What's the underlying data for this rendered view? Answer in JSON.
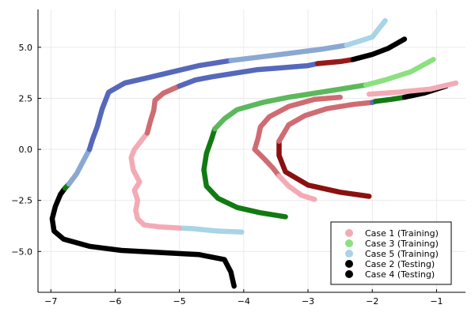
{
  "chart_data": {
    "type": "line",
    "title": "",
    "xlabel": "",
    "ylabel": "",
    "xlim": [
      -7.2,
      -0.55
    ],
    "ylim": [
      -7.0,
      6.85
    ],
    "xticks": [
      -7,
      -6,
      -5,
      -4,
      -3,
      -2,
      -1
    ],
    "xtick_labels": [
      "−7",
      "−6",
      "−5",
      "−4",
      "−3",
      "−2",
      "−1"
    ],
    "yticks": [
      -5.0,
      -2.5,
      0.0,
      2.5,
      5.0
    ],
    "ytick_labels": [
      "−5.0",
      "−2.5",
      "0.0",
      "2.5",
      "5.0"
    ],
    "grid": true,
    "legend_position": "bottom-right",
    "colors": {
      "case1_training": "#f4aab5",
      "case3_training": "#8be07f",
      "case5_training": "#a8d4e6",
      "case2_testing": "#000000",
      "case4_testing": "#000000",
      "case1_dark": "#8b1010",
      "case1_mid": "#d06b72",
      "case2_dark": "#961a1a",
      "case3_dark": "#127a12",
      "case3_mid": "#5cb85c",
      "case5_dark": "#5568bb",
      "case5_mid": "#8aa8d2"
    },
    "legend": [
      {
        "label": "Case 1 (Training)",
        "color": "#f4aab5"
      },
      {
        "label": "Case 3 (Training)",
        "color": "#8be07f"
      },
      {
        "label": "Case 5 (Training)",
        "color": "#a8d4e6"
      },
      {
        "label": "Case 2 (Testing)",
        "color": "#000000"
      },
      {
        "label": "Case 4 (Testing)",
        "color": "#000000"
      }
    ],
    "series": [
      {
        "segments": [
          {
            "color": "#a8d4e6",
            "points": [
              [
                -4.03,
                -4.05
              ],
              [
                -4.4,
                -4.0
              ],
              [
                -4.8,
                -3.88
              ],
              [
                -5.0,
                -3.85
              ]
            ]
          },
          {
            "color": "#f4aab5",
            "points": [
              [
                -5.0,
                -3.85
              ],
              [
                -5.3,
                -3.8
              ],
              [
                -5.55,
                -3.7
              ],
              [
                -5.65,
                -3.4
              ],
              [
                -5.68,
                -3.0
              ],
              [
                -5.65,
                -2.5
              ],
              [
                -5.7,
                -2.0
              ],
              [
                -5.62,
                -1.6
              ],
              [
                -5.72,
                -1.0
              ],
              [
                -5.75,
                -0.4
              ],
              [
                -5.7,
                0.0
              ],
              [
                -5.6,
                0.4
              ],
              [
                -5.5,
                0.8
              ]
            ]
          },
          {
            "color": "#d06b72",
            "points": [
              [
                -5.5,
                0.8
              ],
              [
                -5.45,
                1.4
              ],
              [
                -5.4,
                1.9
              ],
              [
                -5.38,
                2.4
              ],
              [
                -5.25,
                2.75
              ],
              [
                -5.0,
                3.1
              ]
            ]
          },
          {
            "color": "#5568bb",
            "points": [
              [
                -5.0,
                3.1
              ],
              [
                -4.75,
                3.4
              ],
              [
                -4.5,
                3.55
              ],
              [
                -4.2,
                3.7
              ],
              [
                -3.8,
                3.9
              ],
              [
                -3.4,
                4.0
              ],
              [
                -3.0,
                4.1
              ],
              [
                -2.85,
                4.2
              ]
            ]
          },
          {
            "color": "#961a1a",
            "points": [
              [
                -2.85,
                4.2
              ],
              [
                -2.5,
                4.3
              ],
              [
                -2.3,
                4.4
              ]
            ]
          },
          {
            "color": "#000000",
            "points": [
              [
                -2.3,
                4.4
              ],
              [
                -2.0,
                4.65
              ],
              [
                -1.75,
                4.95
              ],
              [
                -1.5,
                5.4
              ]
            ]
          }
        ]
      },
      {
        "segments": [
          {
            "color": "#127a12",
            "points": [
              [
                -3.35,
                -3.3
              ],
              [
                -3.75,
                -3.1
              ],
              [
                -4.1,
                -2.85
              ],
              [
                -4.4,
                -2.4
              ],
              [
                -4.58,
                -1.8
              ],
              [
                -4.62,
                -1.0
              ],
              [
                -4.58,
                -0.2
              ],
              [
                -4.5,
                0.5
              ],
              [
                -4.45,
                1.0
              ]
            ]
          },
          {
            "color": "#5cb85c",
            "points": [
              [
                -4.45,
                1.0
              ],
              [
                -4.3,
                1.5
              ],
              [
                -4.1,
                1.95
              ],
              [
                -3.7,
                2.3
              ],
              [
                -3.3,
                2.55
              ],
              [
                -2.9,
                2.75
              ],
              [
                -2.5,
                2.95
              ],
              [
                -2.1,
                3.15
              ]
            ]
          },
          {
            "color": "#8be07f",
            "points": [
              [
                -2.1,
                3.15
              ],
              [
                -1.8,
                3.4
              ],
              [
                -1.4,
                3.8
              ],
              [
                -1.05,
                4.4
              ]
            ]
          }
        ]
      },
      {
        "segments": [
          {
            "color": "#000000",
            "points": [
              [
                -4.15,
                -6.7
              ],
              [
                -4.2,
                -6.0
              ],
              [
                -4.3,
                -5.4
              ],
              [
                -4.7,
                -5.15
              ],
              [
                -5.3,
                -5.05
              ],
              [
                -5.9,
                -4.95
              ],
              [
                -6.4,
                -4.75
              ],
              [
                -6.8,
                -4.4
              ],
              [
                -6.95,
                -4.0
              ],
              [
                -6.98,
                -3.4
              ],
              [
                -6.93,
                -2.8
              ],
              [
                -6.85,
                -2.2
              ],
              [
                -6.78,
                -1.9
              ]
            ]
          },
          {
            "color": "#127a12",
            "points": [
              [
                -6.78,
                -1.9
              ],
              [
                -6.72,
                -1.7
              ]
            ]
          },
          {
            "color": "#8aa8d2",
            "points": [
              [
                -6.72,
                -1.7
              ],
              [
                -6.6,
                -1.2
              ],
              [
                -6.5,
                -0.6
              ],
              [
                -6.4,
                0.0
              ]
            ]
          },
          {
            "color": "#5568bb",
            "points": [
              [
                -6.4,
                0.0
              ],
              [
                -6.35,
                0.5
              ],
              [
                -6.28,
                1.1
              ],
              [
                -6.2,
                2.0
              ],
              [
                -6.1,
                2.8
              ],
              [
                -5.85,
                3.25
              ],
              [
                -5.5,
                3.5
              ],
              [
                -5.1,
                3.8
              ],
              [
                -4.7,
                4.1
              ],
              [
                -4.2,
                4.35
              ]
            ]
          },
          {
            "color": "#8aa8d2",
            "points": [
              [
                -4.2,
                4.35
              ],
              [
                -3.8,
                4.5
              ],
              [
                -3.3,
                4.7
              ],
              [
                -2.8,
                4.9
              ],
              [
                -2.4,
                5.1
              ]
            ]
          },
          {
            "color": "#a8d4e6",
            "points": [
              [
                -2.4,
                5.1
              ],
              [
                -2.0,
                5.5
              ],
              [
                -1.8,
                6.3
              ]
            ]
          }
        ]
      },
      {
        "segments": [
          {
            "color": "#d06b72",
            "points": [
              [
                -2.5,
                2.55
              ],
              [
                -2.9,
                2.45
              ],
              [
                -3.3,
                2.1
              ],
              [
                -3.6,
                1.6
              ],
              [
                -3.74,
                1.1
              ],
              [
                -3.78,
                0.5
              ],
              [
                -3.83,
                0.0
              ],
              [
                -3.7,
                -0.4
              ],
              [
                -3.55,
                -0.9
              ],
              [
                -3.45,
                -1.3
              ]
            ]
          },
          {
            "color": "#f4aab5",
            "points": [
              [
                -3.45,
                -1.3
              ],
              [
                -3.3,
                -1.8
              ],
              [
                -3.1,
                -2.25
              ],
              [
                -2.9,
                -2.45
              ]
            ]
          }
        ]
      },
      {
        "segments": [
          {
            "color": "#8b1010",
            "points": [
              [
                -2.05,
                -2.3
              ],
              [
                -2.5,
                -2.1
              ],
              [
                -3.0,
                -1.75
              ],
              [
                -3.35,
                -1.1
              ],
              [
                -3.45,
                -0.3
              ],
              [
                -3.45,
                0.4
              ]
            ]
          },
          {
            "color": "#d06b72",
            "points": [
              [
                -3.45,
                0.4
              ],
              [
                -3.3,
                1.2
              ],
              [
                -3.05,
                1.65
              ],
              [
                -2.7,
                2.0
              ],
              [
                -2.3,
                2.2
              ],
              [
                -2.0,
                2.3
              ]
            ]
          },
          {
            "color": "#5568bb",
            "points": [
              [
                -2.0,
                2.3
              ],
              [
                -1.95,
                2.35
              ]
            ]
          },
          {
            "color": "#127a12",
            "points": [
              [
                -1.95,
                2.35
              ],
              [
                -1.7,
                2.45
              ],
              [
                -1.5,
                2.55
              ]
            ]
          },
          {
            "color": "#000000",
            "points": [
              [
                -1.5,
                2.55
              ],
              [
                -1.2,
                2.75
              ],
              [
                -0.85,
                3.1
              ]
            ]
          }
        ]
      },
      {
        "segments": [
          {
            "color": "#f4aab5",
            "points": [
              [
                -2.05,
                2.7
              ],
              [
                -1.6,
                2.8
              ],
              [
                -1.1,
                2.95
              ],
              [
                -0.7,
                3.25
              ]
            ]
          }
        ]
      }
    ]
  }
}
